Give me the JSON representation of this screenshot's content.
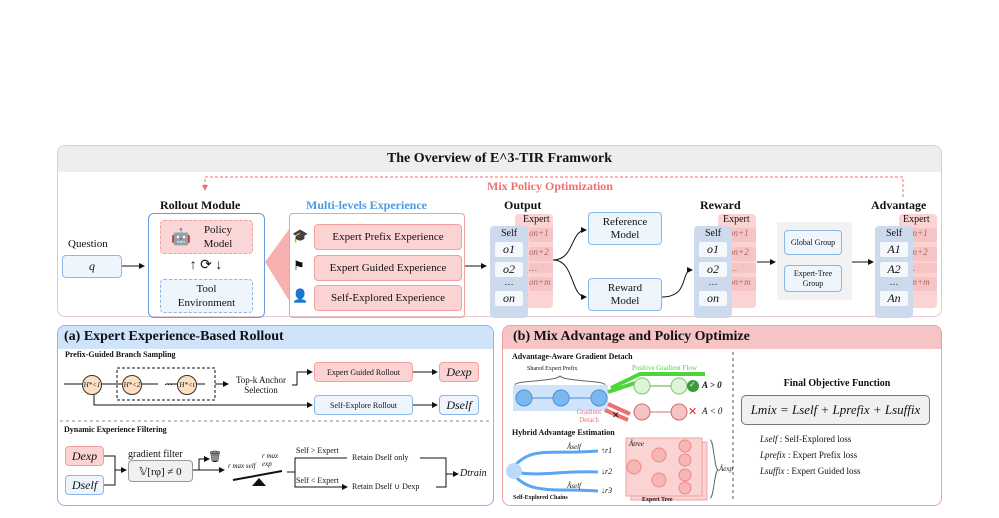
{
  "title": "The Overview of E^3-TIR Framwork",
  "mix_policy": "Mix Policy Optimization",
  "question": {
    "label": "Question",
    "value": "q"
  },
  "rollout": {
    "title": "Rollout Module",
    "policy": "Policy Model",
    "tool": "Tool Environment"
  },
  "experience": {
    "title": "Multi-levels Experience",
    "items": [
      "Expert Prefix Experience",
      "Expert Guided Experience",
      "Self-Explored Experience"
    ]
  },
  "output": {
    "title": "Output",
    "self": "Self",
    "expert": "Expert",
    "self_cells": [
      "o1",
      "o2",
      "…",
      "on"
    ],
    "expert_cells": [
      "on+1",
      "on+2",
      "…",
      "on+m"
    ]
  },
  "reference_model": "Reference Model",
  "reward_model": "Reward Model",
  "reward": {
    "title": "Reward",
    "self_cells": [
      "o1",
      "o2",
      "…",
      "on"
    ]
  },
  "groups": [
    "Global Group",
    "Expert-Tree Group"
  ],
  "advantage": {
    "title": "Advantage",
    "self_cells": [
      "A1",
      "A2",
      "…",
      "An"
    ],
    "expert_cells": [
      "An+1",
      "An+2",
      "…",
      "An+m"
    ]
  },
  "panel_a": {
    "title": "(a) Expert Experience-Based Rollout",
    "sub1": "Prefix-Guided Branch Sampling",
    "nodes": [
      "H*<1",
      "H*<2",
      "H*<t"
    ],
    "ellipsis": "…",
    "anchor": "Top-k Anchor Selection",
    "expert_rollout": "Expert Guided Rollout",
    "self_rollout": "Self-Explore Rollout",
    "d_exp": "Dexp",
    "d_self": "Dself",
    "sub2": "Dynamic Experience Filtering",
    "gradient_filter": "gradient filter",
    "filter_expr": "𝕍[rφ] ≠ 0",
    "r_self": "r max self",
    "r_exp": "r max exp",
    "cond1": "Self > Expert",
    "cond2": "Self < Expert",
    "retain1": "Retain Dself only",
    "retain2": "Retain Dself ∪ Dexp",
    "d_train": "Dtrain"
  },
  "panel_b": {
    "title": "(b) Mix Advantage and Policy Optimize",
    "sub1": "Advantage-Aware Gradient Detach",
    "shared_prefix": "Shared Expert Prefix",
    "positive_flow": "Positive Gradient Flow",
    "gradient_detach": "Gradient Detach",
    "a_pos": "A > 0",
    "a_neg": "A < 0",
    "sub2": "Hybrid Advantage Estimation",
    "a_self": "Âself",
    "a_tree": "Âtree",
    "a_exp": "Âexp",
    "rewards": [
      "↑r1",
      "↓r2",
      "↓r3"
    ],
    "chains_label": "Self-Explored Chains",
    "tree_label": "Expert Tree",
    "objective_title": "Final Objective Function",
    "objective": "Lmix = Lself + Lprefix + Lsuffix",
    "losses": [
      {
        "sym": "Lself",
        "desc": ": Self-Explored loss"
      },
      {
        "sym": "Lprefix",
        "desc": ":  Expert Prefix loss"
      },
      {
        "sym": "Lsuffix",
        "desc": ": Expert Guided loss"
      }
    ]
  },
  "colors": {
    "pink": "#fbd3d3",
    "red": "#f07070",
    "blue": "#4a9be8",
    "green": "#4cd63a",
    "gray": "#eeeeee"
  }
}
